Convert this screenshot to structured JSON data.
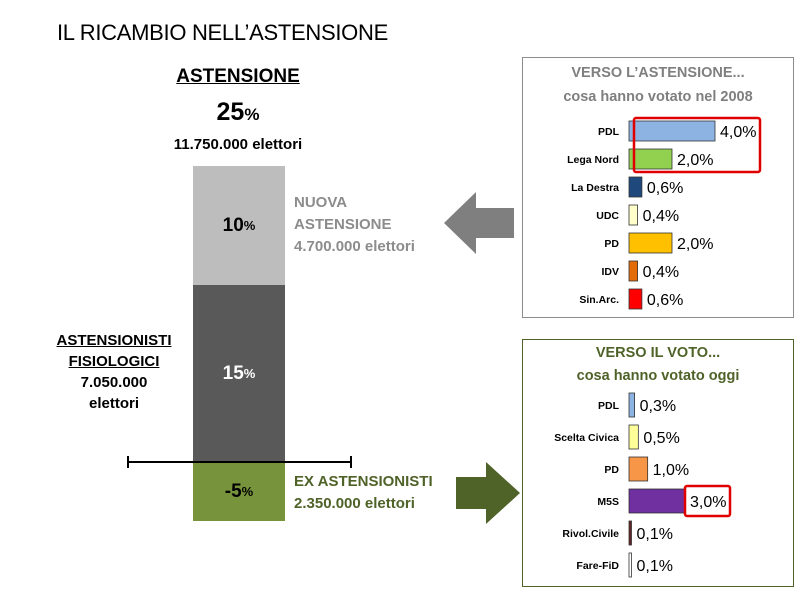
{
  "title": "IL RICAMBIO NELL’ASTENSIONE",
  "abstention": {
    "heading": "ASTENSIONE",
    "total_pct_value": "25",
    "pct_sign": "%",
    "total_voters": "11.750.000 elettori"
  },
  "stack": {
    "new": {
      "value": "10",
      "unit": "%",
      "label_line1": "NUOVA",
      "label_line2": "ASTENSIONE",
      "label_line3": "4.700.000 elettori"
    },
    "physiological": {
      "value": "15",
      "unit": "%",
      "label_line1": "ASTENSIONISTI",
      "label_line2": "FISIOLOGICI",
      "label_line3": "7.050.000",
      "label_line4": "elettori"
    },
    "ex": {
      "value": "-5",
      "unit": "%",
      "label_line1": "EX ASTENSIONISTI",
      "label_line2": "2.350.000 elettori"
    }
  },
  "colors": {
    "new": "#bdbdbd",
    "physiological": "#595959",
    "ex": "#77933c",
    "arrow_gray": "#7f7f7f",
    "arrow_green": "#4f6228",
    "highlight": "#e00000"
  },
  "chart_data": [
    {
      "type": "bar",
      "orientation": "horizontal",
      "title": "VERSO L’ASTENSIONE...",
      "subtitle": "cosa hanno votato nel 2008",
      "categories": [
        "PDL",
        "Lega Nord",
        "La Destra",
        "UDC",
        "PD",
        "IDV",
        "Sin.Arc."
      ],
      "values": [
        4.0,
        2.0,
        0.6,
        0.4,
        2.0,
        0.4,
        0.6
      ],
      "labels": [
        "4,0%",
        "2,0%",
        "0,6%",
        "0,4%",
        "2,0%",
        "0,4%",
        "0,6%"
      ],
      "colors": [
        "#8db3e2",
        "#92d050",
        "#1f497d",
        "#ffffcc",
        "#ffc000",
        "#e36c09",
        "#ff0000"
      ],
      "highlight_categories": [
        "PDL",
        "Lega Nord"
      ]
    },
    {
      "type": "bar",
      "orientation": "horizontal",
      "title": "VERSO IL VOTO...",
      "subtitle": "cosa hanno votato oggi",
      "categories": [
        "PDL",
        "Scelta Civica",
        "PD",
        "M5S",
        "Rivol.Civile",
        "Fare-FiD"
      ],
      "values": [
        0.3,
        0.5,
        1.0,
        3.0,
        0.1,
        0.1
      ],
      "labels": [
        "0,3%",
        "0,5%",
        "1,0%",
        "3,0%",
        "0,1%",
        "0,1%"
      ],
      "colors": [
        "#8db3e2",
        "#ffff99",
        "#f79646",
        "#7030a0",
        "#632523",
        "#ffffff"
      ],
      "highlight_categories": [
        "M5S"
      ]
    }
  ]
}
